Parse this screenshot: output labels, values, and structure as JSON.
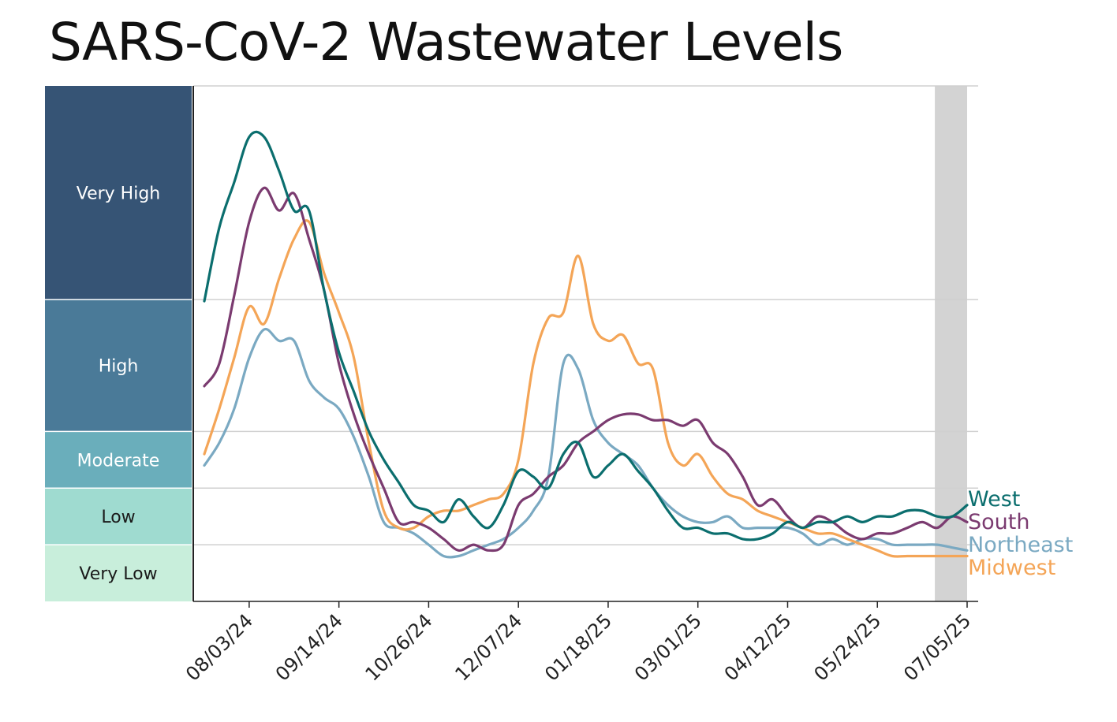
{
  "title": "SARS-CoV-2 Wastewater Levels",
  "chart_data": {
    "type": "line",
    "title": "SARS-CoV-2 Wastewater Levels",
    "xlabel": "",
    "ylabel": "",
    "x_dates": [
      "07/13/24",
      "07/20/24",
      "07/27/24",
      "08/03/24",
      "08/10/24",
      "08/17/24",
      "08/24/24",
      "08/31/24",
      "09/07/24",
      "09/14/24",
      "09/21/24",
      "09/28/24",
      "10/05/24",
      "10/12/24",
      "10/19/24",
      "10/26/24",
      "11/02/24",
      "11/09/24",
      "11/16/24",
      "11/23/24",
      "11/30/24",
      "12/07/24",
      "12/14/24",
      "12/21/24",
      "12/28/24",
      "01/04/25",
      "01/11/25",
      "01/18/25",
      "01/25/25",
      "02/01/25",
      "02/08/25",
      "02/15/25",
      "02/22/25",
      "03/01/25",
      "03/08/25",
      "03/15/25",
      "03/22/25",
      "03/29/25",
      "04/05/25",
      "04/12/25",
      "04/19/25",
      "04/26/25",
      "05/03/25",
      "05/10/25",
      "05/17/25",
      "05/24/25",
      "05/31/25",
      "06/07/25",
      "06/14/25",
      "06/21/25",
      "06/28/25",
      "07/05/25"
    ],
    "x_ticks": [
      "08/03/24",
      "09/14/24",
      "10/26/24",
      "12/07/24",
      "01/18/25",
      "03/01/25",
      "04/12/25",
      "05/24/25",
      "07/05/25"
    ],
    "ylim": [
      0,
      9.1
    ],
    "levels": [
      {
        "name": "Very Low",
        "from": 0,
        "to": 1,
        "color": "#c8eedb",
        "text_color": "#1a1a1a"
      },
      {
        "name": "Low",
        "from": 1,
        "to": 2,
        "color": "#9fdbd0",
        "text_color": "#1a1a1a"
      },
      {
        "name": "Moderate",
        "from": 2,
        "to": 3,
        "color": "#6aaebb",
        "text_color": "#ffffff"
      },
      {
        "name": "High",
        "from": 3,
        "to": 5.33,
        "color": "#4a7a98",
        "text_color": "#ffffff"
      },
      {
        "name": "Very High",
        "from": 5.33,
        "to": 9.1,
        "color": "#365475",
        "text_color": "#ffffff"
      }
    ],
    "shaded_region": {
      "from": "06/21/25",
      "to": "07/05/25",
      "color": "#d3d3d3"
    },
    "series": [
      {
        "name": "West",
        "color": "#0b6e6e",
        "values": [
          5.3,
          6.6,
          7.4,
          8.2,
          8.2,
          7.6,
          6.9,
          6.9,
          5.5,
          4.4,
          3.7,
          3.0,
          2.5,
          2.1,
          1.7,
          1.6,
          1.4,
          1.8,
          1.5,
          1.3,
          1.7,
          2.3,
          2.2,
          2.0,
          2.6,
          2.8,
          2.2,
          2.4,
          2.6,
          2.3,
          2.0,
          1.6,
          1.3,
          1.3,
          1.2,
          1.2,
          1.1,
          1.1,
          1.2,
          1.4,
          1.3,
          1.4,
          1.4,
          1.5,
          1.4,
          1.5,
          1.5,
          1.6,
          1.6,
          1.5,
          1.5,
          1.7
        ]
      },
      {
        "name": "South",
        "color": "#7b3b70",
        "values": [
          3.8,
          4.2,
          5.4,
          6.7,
          7.3,
          6.9,
          7.2,
          6.4,
          5.5,
          4.2,
          3.3,
          2.6,
          2.0,
          1.4,
          1.4,
          1.3,
          1.1,
          0.9,
          1.0,
          0.9,
          1.0,
          1.7,
          1.9,
          2.2,
          2.4,
          2.8,
          3.0,
          3.2,
          3.3,
          3.3,
          3.2,
          3.2,
          3.1,
          3.2,
          2.8,
          2.6,
          2.2,
          1.7,
          1.8,
          1.5,
          1.3,
          1.5,
          1.4,
          1.2,
          1.1,
          1.2,
          1.2,
          1.3,
          1.4,
          1.3,
          1.5,
          1.4
        ]
      },
      {
        "name": "Northeast",
        "color": "#7aa9c2",
        "values": [
          2.4,
          2.8,
          3.4,
          4.3,
          4.8,
          4.6,
          4.6,
          3.9,
          3.6,
          3.4,
          2.9,
          2.2,
          1.4,
          1.3,
          1.2,
          1.0,
          0.8,
          0.8,
          0.9,
          1.0,
          1.1,
          1.3,
          1.6,
          2.2,
          4.2,
          4.1,
          3.2,
          2.8,
          2.6,
          2.4,
          2.0,
          1.7,
          1.5,
          1.4,
          1.4,
          1.5,
          1.3,
          1.3,
          1.3,
          1.3,
          1.2,
          1.0,
          1.1,
          1.0,
          1.1,
          1.1,
          1.0,
          1.0,
          1.0,
          1.0,
          0.95,
          0.9
        ]
      },
      {
        "name": "Midwest",
        "color": "#f4a557",
        "values": [
          2.6,
          3.4,
          4.3,
          5.2,
          4.9,
          5.7,
          6.4,
          6.7,
          5.8,
          5.1,
          4.3,
          2.8,
          1.6,
          1.3,
          1.3,
          1.5,
          1.6,
          1.6,
          1.7,
          1.8,
          1.9,
          2.5,
          4.2,
          5.0,
          5.1,
          6.1,
          4.9,
          4.6,
          4.7,
          4.2,
          4.1,
          2.8,
          2.4,
          2.6,
          2.2,
          1.9,
          1.8,
          1.6,
          1.5,
          1.4,
          1.3,
          1.2,
          1.2,
          1.1,
          1.0,
          0.9,
          0.8,
          0.8,
          0.8,
          0.8,
          0.8,
          0.8
        ]
      }
    ]
  }
}
